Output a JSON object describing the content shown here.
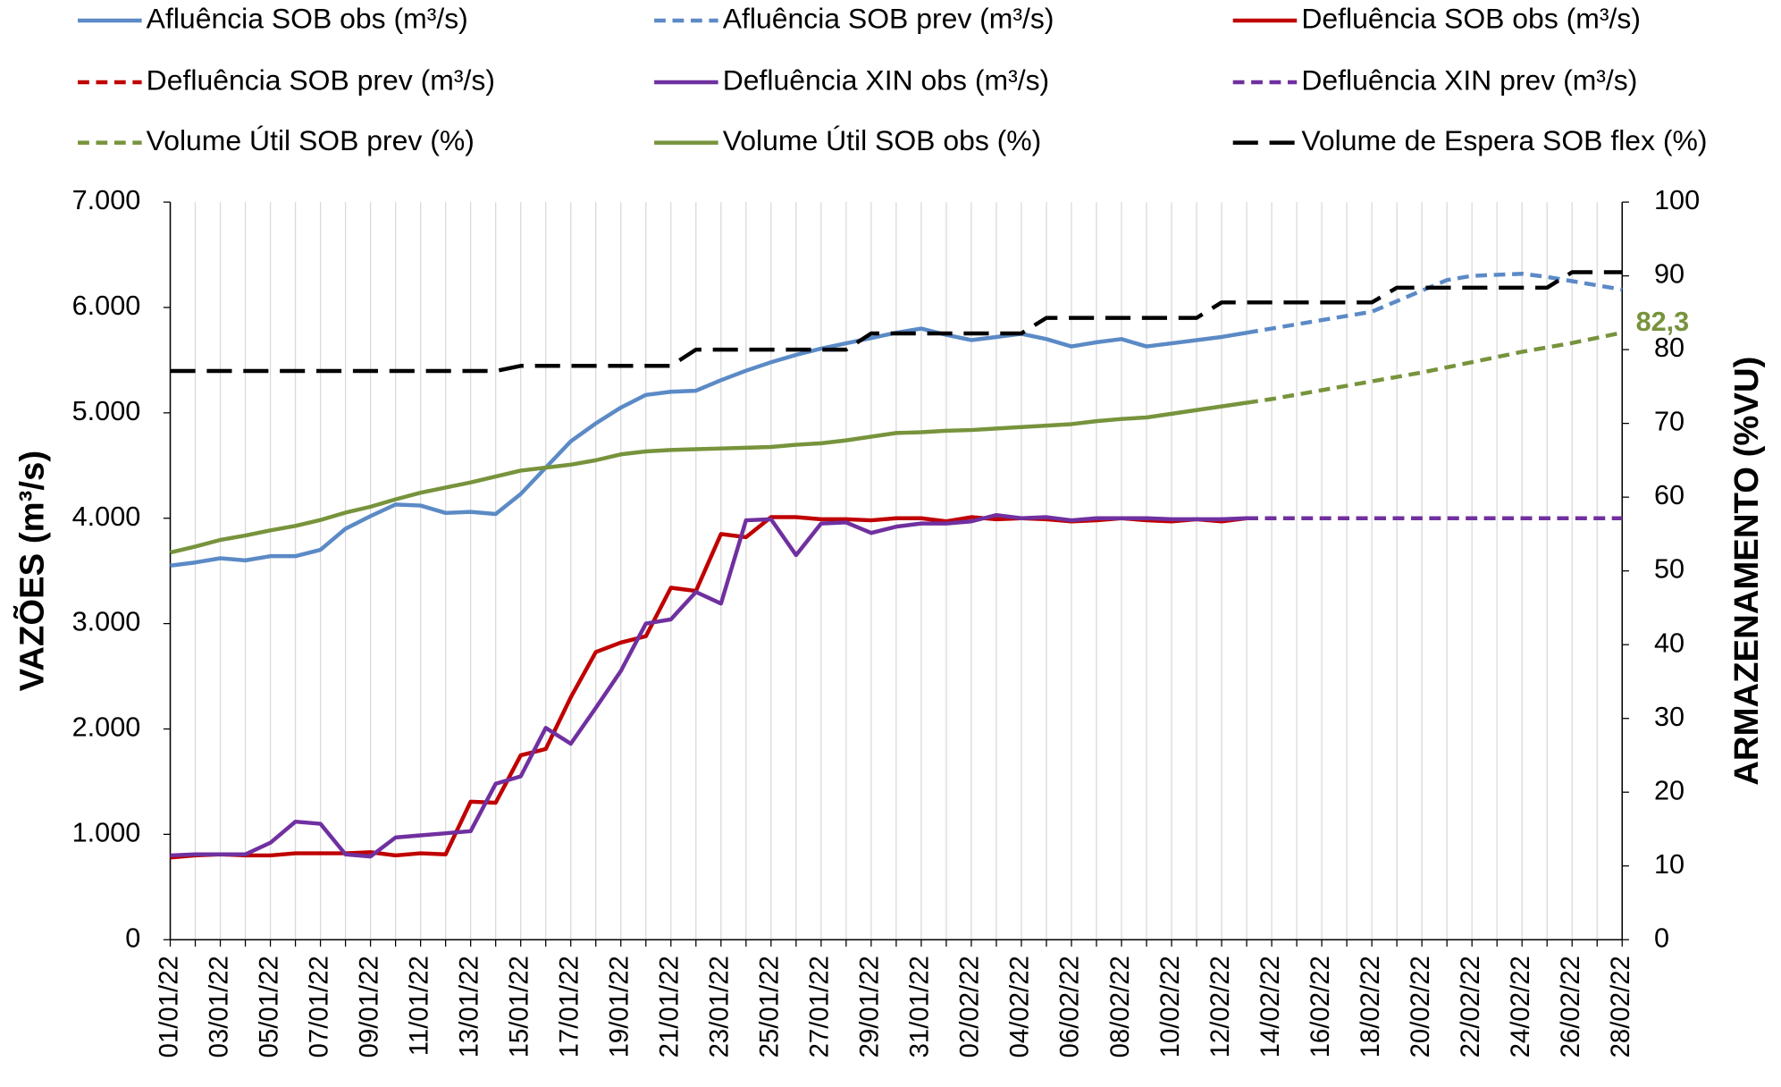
{
  "chart_data": {
    "type": "line",
    "y_label": "VAZÕES (m³/s)",
    "y2_label": "ARMAZENAMENTO (%VU)",
    "categories": [
      "01/01/22",
      null,
      "03/01/22",
      null,
      "05/01/22",
      null,
      "07/01/22",
      null,
      "09/01/22",
      null,
      "11/01/22",
      null,
      "13/01/22",
      null,
      "15/01/22",
      null,
      "17/01/22",
      null,
      "19/01/22",
      null,
      "21/01/22",
      null,
      "23/01/22",
      null,
      "25/01/22",
      null,
      "27/01/22",
      null,
      "29/01/22",
      null,
      "31/01/22",
      null,
      "02/02/22",
      null,
      "04/02/22",
      null,
      "06/02/22",
      null,
      "08/02/22",
      null,
      "10/02/22",
      null,
      "12/02/22",
      null,
      "14/02/22",
      null,
      "16/02/22",
      null,
      "18/02/22",
      null,
      "20/02/22",
      null,
      "22/02/22",
      null,
      "24/02/22",
      null,
      "26/02/22",
      null,
      "28/02/22"
    ],
    "ylim": [
      0,
      7000
    ],
    "yticks": [
      0,
      {
        "value": 1000,
        "label": "1.000"
      },
      {
        "value": 2000,
        "label": "2.000"
      },
      {
        "value": 3000,
        "label": "3.000"
      },
      {
        "value": 4000,
        "label": "4.000"
      },
      {
        "value": 5000,
        "label": "5.000"
      },
      {
        "value": 6000,
        "label": "6.000"
      },
      {
        "value": 7000,
        "label": "7.000"
      }
    ],
    "y2lim": [
      0,
      100
    ],
    "y2ticks": [
      0,
      10,
      20,
      30,
      40,
      50,
      60,
      70,
      80,
      90,
      100
    ],
    "xgrid": true,
    "legend": "top",
    "series": [
      {
        "name": "Afluência SOB obs (m³/s)",
        "color": "#5b8ac6",
        "dash": false,
        "values": [
          3550,
          3580,
          3620,
          3600,
          3640,
          3640,
          3700,
          3900,
          4020,
          4130,
          4120,
          4050,
          4060,
          4040,
          4230,
          4480,
          4730,
          4900,
          5050,
          5170,
          5200,
          5210,
          5310,
          5400,
          5480,
          5550,
          5610,
          5660,
          5710,
          5760,
          5800,
          5740,
          5690,
          5720,
          5750,
          5700,
          5630,
          5670,
          5700,
          5630,
          5660,
          5690,
          5720,
          5760,
          null,
          null,
          null,
          null,
          null,
          null,
          null,
          null,
          null,
          null,
          null,
          null,
          null,
          null,
          null
        ]
      },
      {
        "name": "Afluência SOB prev (m³/s)",
        "color": "#5b8ac6",
        "dash": true,
        "values": [
          null,
          null,
          null,
          null,
          null,
          null,
          null,
          null,
          null,
          null,
          null,
          null,
          null,
          null,
          null,
          null,
          null,
          null,
          null,
          null,
          null,
          null,
          null,
          null,
          null,
          null,
          null,
          null,
          null,
          null,
          null,
          null,
          null,
          null,
          null,
          null,
          null,
          null,
          null,
          null,
          null,
          null,
          null,
          5760,
          5800,
          5840,
          5880,
          5920,
          5960,
          6060,
          6160,
          6260,
          6300,
          6310,
          6320,
          6290,
          6250,
          6210,
          6170
        ]
      },
      {
        "name": "Defluência SOB obs (m³/s)",
        "color": "#c00000",
        "dash": false,
        "values": [
          780,
          800,
          810,
          800,
          800,
          820,
          820,
          820,
          830,
          800,
          820,
          810,
          1310,
          1300,
          1750,
          1810,
          2300,
          2730,
          2820,
          2880,
          3340,
          3310,
          3850,
          3820,
          4010,
          4010,
          3990,
          3990,
          3980,
          4000,
          4000,
          3970,
          4010,
          3990,
          4000,
          3990,
          3970,
          3980,
          4000,
          3980,
          3970,
          3990,
          3970,
          4000,
          null,
          null,
          null,
          null,
          null,
          null,
          null,
          null,
          null,
          null,
          null,
          null,
          null,
          null,
          null
        ]
      },
      {
        "name": "Defluência SOB prev (m³/s)",
        "color": "#c00000",
        "dash": true,
        "values": [
          null,
          null,
          null,
          null,
          null,
          null,
          null,
          null,
          null,
          null,
          null,
          null,
          null,
          null,
          null,
          null,
          null,
          null,
          null,
          null,
          null,
          null,
          null,
          null,
          null,
          null,
          null,
          null,
          null,
          null,
          null,
          null,
          null,
          null,
          null,
          null,
          null,
          null,
          null,
          null,
          null,
          null,
          null,
          4000,
          4000,
          4000,
          4000,
          4000,
          4000,
          4000,
          4000,
          4000,
          4000,
          4000,
          4000,
          4000,
          4000,
          4000,
          4000
        ]
      },
      {
        "name": "Defluência XIN obs (m³/s)",
        "color": "#7030a0",
        "dash": false,
        "values": [
          800,
          810,
          810,
          810,
          920,
          1120,
          1100,
          810,
          790,
          970,
          990,
          1010,
          1030,
          1480,
          1550,
          2010,
          1860,
          2200,
          2550,
          3000,
          3040,
          3300,
          3190,
          3980,
          3990,
          3650,
          3950,
          3960,
          3860,
          3920,
          3950,
          3950,
          3970,
          4030,
          4000,
          4010,
          3980,
          4000,
          4000,
          4000,
          3990,
          3990,
          3990,
          4000,
          null,
          null,
          null,
          null,
          null,
          null,
          null,
          null,
          null,
          null,
          null,
          null,
          null,
          null,
          null
        ]
      },
      {
        "name": "Defluência XIN prev (m³/s)",
        "color": "#7030a0",
        "dash": true,
        "values": [
          null,
          null,
          null,
          null,
          null,
          null,
          null,
          null,
          null,
          null,
          null,
          null,
          null,
          null,
          null,
          null,
          null,
          null,
          null,
          null,
          null,
          null,
          null,
          null,
          null,
          null,
          null,
          null,
          null,
          null,
          null,
          null,
          null,
          null,
          null,
          null,
          null,
          null,
          null,
          null,
          null,
          null,
          null,
          4000,
          4000,
          4000,
          4000,
          4000,
          4000,
          4000,
          4000,
          4000,
          4000,
          4000,
          4000,
          4000,
          4000,
          4000,
          4000
        ]
      },
      {
        "name": "Volume Útil SOB prev (%)",
        "color": "#77933c",
        "dash": true,
        "axis": "y2",
        "values": [
          null,
          null,
          null,
          null,
          null,
          null,
          null,
          null,
          null,
          null,
          null,
          null,
          null,
          null,
          null,
          null,
          null,
          null,
          null,
          null,
          null,
          null,
          null,
          null,
          null,
          null,
          null,
          null,
          null,
          null,
          null,
          null,
          null,
          null,
          null,
          null,
          null,
          null,
          null,
          null,
          null,
          null,
          null,
          72.8,
          73.3,
          73.9,
          74.5,
          75.1,
          75.7,
          76.3,
          76.9,
          77.6,
          78.3,
          79.0,
          79.7,
          80.3,
          80.9,
          81.6,
          82.3
        ],
        "value_labels": [
          null,
          null,
          null,
          null,
          null,
          null,
          null,
          null,
          null,
          null,
          null,
          null,
          null,
          null,
          null,
          null,
          null,
          null,
          null,
          null,
          null,
          null,
          null,
          null,
          null,
          null,
          null,
          null,
          null,
          null,
          null,
          null,
          null,
          null,
          null,
          null,
          null,
          null,
          null,
          null,
          null,
          null,
          null,
          null,
          null,
          null,
          null,
          null,
          null,
          null,
          null,
          null,
          null,
          null,
          null,
          null,
          null,
          null,
          "82,3"
        ]
      },
      {
        "name": "Volume Útil SOB obs (%)",
        "color": "#77933c",
        "dash": false,
        "axis": "y2",
        "values": [
          52.5,
          53.3,
          54.2,
          54.8,
          55.5,
          56.1,
          56.9,
          57.9,
          58.7,
          59.7,
          60.6,
          61.3,
          62.0,
          62.8,
          63.6,
          64.0,
          64.4,
          65.0,
          65.8,
          66.2,
          66.4,
          66.5,
          66.6,
          66.7,
          66.8,
          67.1,
          67.3,
          67.7,
          68.2,
          68.7,
          68.8,
          69.0,
          69.1,
          69.3,
          69.5,
          69.7,
          69.9,
          70.3,
          70.6,
          70.8,
          71.3,
          71.8,
          72.3,
          72.8,
          null,
          null,
          null,
          null,
          null,
          null,
          null,
          null,
          null,
          null,
          null,
          null,
          null,
          null,
          null
        ]
      },
      {
        "name": "Volume de Espera SOB flex (%)",
        "color": "#000000",
        "dash": true,
        "axis": "y2",
        "values": [
          77.1,
          77.1,
          77.1,
          77.1,
          77.1,
          77.1,
          77.1,
          77.1,
          77.1,
          77.1,
          77.1,
          77.1,
          77.1,
          77.1,
          77.8,
          77.8,
          77.8,
          77.8,
          77.8,
          77.8,
          77.8,
          80.0,
          80.0,
          80.0,
          80.0,
          80.0,
          80.0,
          80.0,
          82.2,
          82.2,
          82.2,
          82.2,
          82.2,
          82.2,
          82.2,
          84.3,
          84.3,
          84.3,
          84.3,
          84.3,
          84.3,
          84.3,
          86.4,
          86.4,
          86.4,
          86.4,
          86.4,
          86.4,
          86.4,
          88.4,
          88.4,
          88.4,
          88.4,
          88.4,
          88.4,
          88.4,
          90.5,
          90.5,
          90.5
        ]
      }
    ]
  }
}
